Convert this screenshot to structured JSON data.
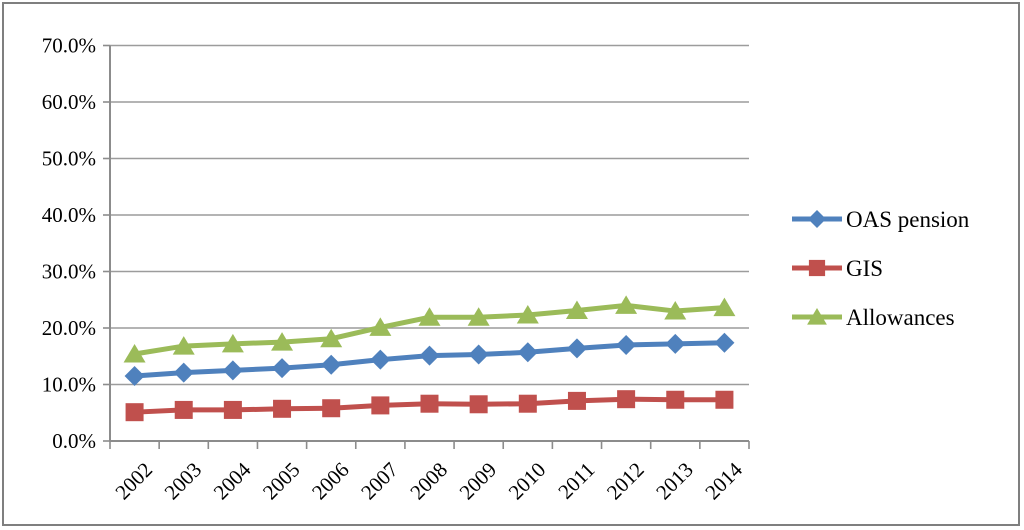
{
  "figure": {
    "background": "#ffffff",
    "border_color": "#7f7f7f"
  },
  "chart_data": {
    "type": "line",
    "x": [
      "2002",
      "2003",
      "2004",
      "2005",
      "2006",
      "2007",
      "2008",
      "2009",
      "2010",
      "2011",
      "2012",
      "2013",
      "2014"
    ],
    "series": [
      {
        "name": "OAS pension",
        "marker": "diamond",
        "color": "#4F81BD",
        "values": [
          11.5,
          12.1,
          12.5,
          12.9,
          13.5,
          14.4,
          15.1,
          15.3,
          15.7,
          16.4,
          17.0,
          17.2,
          17.4
        ]
      },
      {
        "name": "GIS",
        "marker": "square",
        "color": "#C0504D",
        "values": [
          5.1,
          5.5,
          5.5,
          5.7,
          5.8,
          6.3,
          6.6,
          6.5,
          6.6,
          7.1,
          7.4,
          7.3,
          7.3
        ]
      },
      {
        "name": "Allowances",
        "marker": "triangle",
        "color": "#9BBB59",
        "values": [
          15.4,
          16.8,
          17.2,
          17.5,
          18.1,
          20.1,
          21.9,
          21.9,
          22.3,
          23.1,
          24.0,
          23.0,
          23.6
        ]
      }
    ],
    "ylim": [
      0,
      70
    ],
    "ytick_step": 10,
    "ytick_labels": [
      "0.0%",
      "10.0%",
      "20.0%",
      "30.0%",
      "40.0%",
      "50.0%",
      "60.0%",
      "70.0%"
    ],
    "grid": "horizontal-only",
    "legend_position": "right-middle",
    "xlabel": "",
    "ylabel": "",
    "grid_color": "#9c9c9c",
    "axis_color": "#8c8c8c",
    "text_color": "#000000"
  }
}
